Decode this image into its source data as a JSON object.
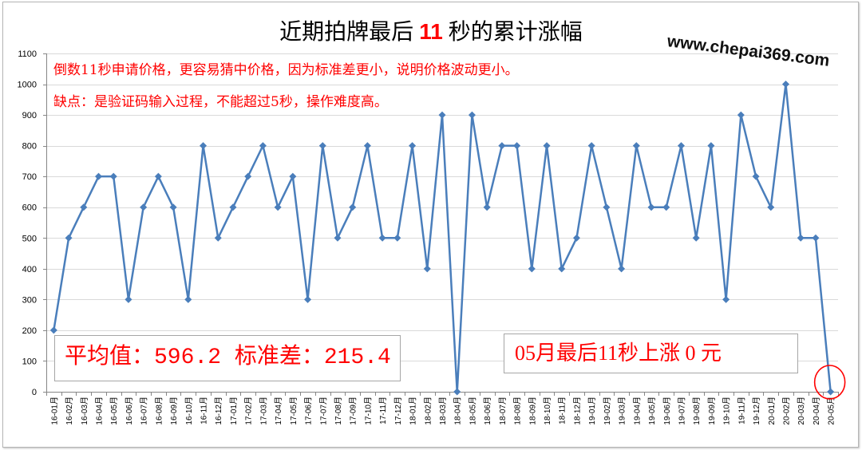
{
  "watermark": "www.chepai369.com",
  "colors": {
    "series": "#4a7ebb",
    "accent": "#ff0000",
    "grid": "#d9d9d9",
    "axis": "#868686"
  },
  "chart_data": {
    "type": "line",
    "title": "近期拍牌最后 11 秒的累计涨幅",
    "categories": [
      "16-01月",
      "16-02月",
      "16-03月",
      "16-04月",
      "16-05月",
      "16-06月",
      "16-07月",
      "16-08月",
      "16-09月",
      "16-10月",
      "16-11月",
      "16-12月",
      "17-01月",
      "17-02月",
      "17-03月",
      "17-04月",
      "17-05月",
      "17-06月",
      "17-07月",
      "17-08月",
      "17-09月",
      "17-10月",
      "17-11月",
      "17-12月",
      "18-01月",
      "18-02月",
      "18-03月",
      "18-04月",
      "18-05月",
      "18-06月",
      "18-07月",
      "18-08月",
      "18-09月",
      "18-10月",
      "18-11月",
      "18-12月",
      "19-01月",
      "19-02月",
      "19-03月",
      "19-04月",
      "19-05月",
      "19-06月",
      "19-07月",
      "19-08月",
      "19-09月",
      "19-10月",
      "19-11月",
      "19-12月",
      "20-01月",
      "20-02月",
      "20-03月",
      "20-04月",
      "20-05月"
    ],
    "series": [
      {
        "values": [
          200,
          500,
          600,
          700,
          700,
          300,
          600,
          700,
          600,
          300,
          800,
          500,
          600,
          700,
          800,
          600,
          700,
          300,
          800,
          500,
          600,
          800,
          500,
          500,
          800,
          400,
          900,
          0,
          900,
          600,
          800,
          800,
          400,
          800,
          400,
          500,
          800,
          600,
          400,
          800,
          600,
          600,
          800,
          500,
          800,
          300,
          900,
          700,
          600,
          1000,
          500,
          500,
          0
        ]
      }
    ],
    "ylim": [
      0,
      1100
    ],
    "yticks": [
      0,
      100,
      200,
      300,
      400,
      500,
      600,
      700,
      800,
      900,
      1000,
      1100
    ],
    "grid": true,
    "annotations": {
      "notes": [
        "倒数11秒申请价格，更容易猜中价格，因为标准差更小，说明价格波动更小。",
        "缺点：是验证码输入过程，不能超过5秒，操作难度高。"
      ],
      "stats_box": "平均值：596.2 标准差：215.4",
      "latest_box": "05月最后11秒上涨 0 元",
      "circled_point_index": 52
    }
  }
}
